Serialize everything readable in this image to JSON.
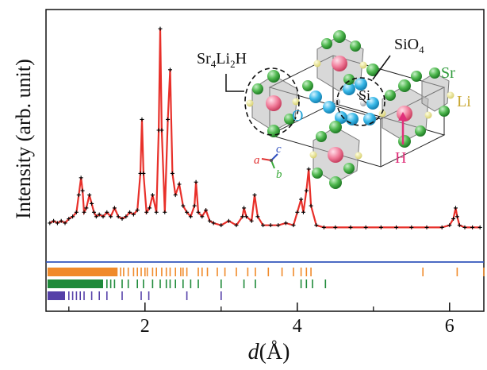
{
  "chart_data": {
    "type": "line",
    "xlabel_var": "d",
    "xlabel_unit": "(Å)",
    "ylabel": "Intensity (arb. unit)",
    "xlim": [
      0.7,
      6.45
    ],
    "ylim": [
      0,
      1
    ],
    "xticks": [
      2,
      4,
      6
    ],
    "grid": false,
    "series": [
      {
        "role": "observed",
        "color": "#000000",
        "marker": "cross",
        "x": [
          0.75,
          0.8,
          0.85,
          0.9,
          0.95,
          1.0,
          1.05,
          1.1,
          1.13,
          1.16,
          1.18,
          1.2,
          1.23,
          1.27,
          1.3,
          1.33,
          1.36,
          1.4,
          1.45,
          1.5,
          1.55,
          1.6,
          1.65,
          1.7,
          1.75,
          1.8,
          1.85,
          1.9,
          1.94,
          1.96,
          1.98,
          2.02,
          2.06,
          2.1,
          2.15,
          2.18,
          2.2,
          2.22,
          2.26,
          2.3,
          2.33,
          2.36,
          2.4,
          2.45,
          2.5,
          2.55,
          2.6,
          2.65,
          2.67,
          2.7,
          2.75,
          2.8,
          2.85,
          2.9,
          3.0,
          3.1,
          3.2,
          3.28,
          3.3,
          3.33,
          3.4,
          3.44,
          3.48,
          3.55,
          3.65,
          3.75,
          3.85,
          3.95,
          4.0,
          4.05,
          4.08,
          4.12,
          4.15,
          4.18,
          4.25,
          4.35,
          4.5,
          4.7,
          4.9,
          5.1,
          5.3,
          5.5,
          5.7,
          5.9,
          6.0,
          6.05,
          6.08,
          6.1,
          6.13,
          6.2,
          6.3,
          6.4
        ],
        "y": [
          0.07,
          0.08,
          0.07,
          0.08,
          0.07,
          0.09,
          0.1,
          0.12,
          0.2,
          0.28,
          0.22,
          0.12,
          0.14,
          0.2,
          0.16,
          0.12,
          0.1,
          0.11,
          0.1,
          0.12,
          0.1,
          0.14,
          0.1,
          0.09,
          0.1,
          0.12,
          0.11,
          0.13,
          0.3,
          0.55,
          0.3,
          0.12,
          0.14,
          0.2,
          0.12,
          0.5,
          0.97,
          0.5,
          0.12,
          0.55,
          0.78,
          0.3,
          0.2,
          0.25,
          0.15,
          0.12,
          0.1,
          0.15,
          0.26,
          0.12,
          0.1,
          0.13,
          0.08,
          0.07,
          0.06,
          0.08,
          0.06,
          0.1,
          0.14,
          0.1,
          0.08,
          0.2,
          0.1,
          0.06,
          0.06,
          0.06,
          0.07,
          0.06,
          0.12,
          0.18,
          0.12,
          0.22,
          0.32,
          0.15,
          0.06,
          0.05,
          0.05,
          0.05,
          0.05,
          0.05,
          0.05,
          0.05,
          0.05,
          0.05,
          0.06,
          0.09,
          0.14,
          0.1,
          0.06,
          0.05,
          0.05,
          0.05
        ]
      },
      {
        "role": "calculated",
        "color": "#e8302a",
        "marker": "none"
      },
      {
        "role": "difference",
        "color": "#3355bb",
        "marker": "none",
        "y_level": 0
      }
    ],
    "reflection_ticks": [
      {
        "color": "#f08a2a",
        "dense_start": 0.72,
        "dense_end": 1.64,
        "positions": [
          1.68,
          1.72,
          1.78,
          1.85,
          1.9,
          1.95,
          2.0,
          2.03,
          2.1,
          2.15,
          2.22,
          2.28,
          2.33,
          2.4,
          2.47,
          2.5,
          2.55,
          2.7,
          2.75,
          2.82,
          2.95,
          3.05,
          3.2,
          3.35,
          3.45,
          3.62,
          3.8,
          3.95,
          4.05,
          4.12,
          4.18,
          5.65,
          6.1,
          6.45
        ]
      },
      {
        "color": "#1f8a3a",
        "dense_start": 0.72,
        "dense_end": 1.45,
        "positions": [
          1.5,
          1.55,
          1.6,
          1.7,
          1.78,
          1.9,
          1.98,
          2.1,
          2.2,
          2.28,
          2.33,
          2.4,
          2.5,
          2.6,
          2.7,
          3.0,
          3.3,
          3.45,
          4.05,
          4.12,
          4.2,
          4.37
        ]
      },
      {
        "color": "#5540a8",
        "dense_start": 0.72,
        "dense_end": 0.95,
        "positions": [
          1.0,
          1.05,
          1.1,
          1.15,
          1.2,
          1.3,
          1.4,
          1.5,
          1.7,
          1.95,
          2.05,
          2.55,
          3.0
        ]
      }
    ],
    "inset": {
      "labels": {
        "sr4li2h_main": "Sr",
        "sr4li2h_sub1": "4",
        "sr4li2h_li": "Li",
        "sr4li2h_sub2": "2",
        "sr4li2h_h": "H",
        "sio4_main": "SiO",
        "sio4_sub": "4",
        "sr": "Sr",
        "li": "Li",
        "si": "Si",
        "o": "O",
        "h": "H",
        "axis_a": "a",
        "axis_b": "b",
        "axis_c": "c"
      },
      "colors": {
        "sr": "#2e9a3a",
        "li": "#c8a630",
        "o": "#25a4d8",
        "h": "#e0307a",
        "axis_a": "#e03030",
        "axis_b": "#3aaa3a",
        "axis_c": "#3050c0"
      }
    }
  }
}
